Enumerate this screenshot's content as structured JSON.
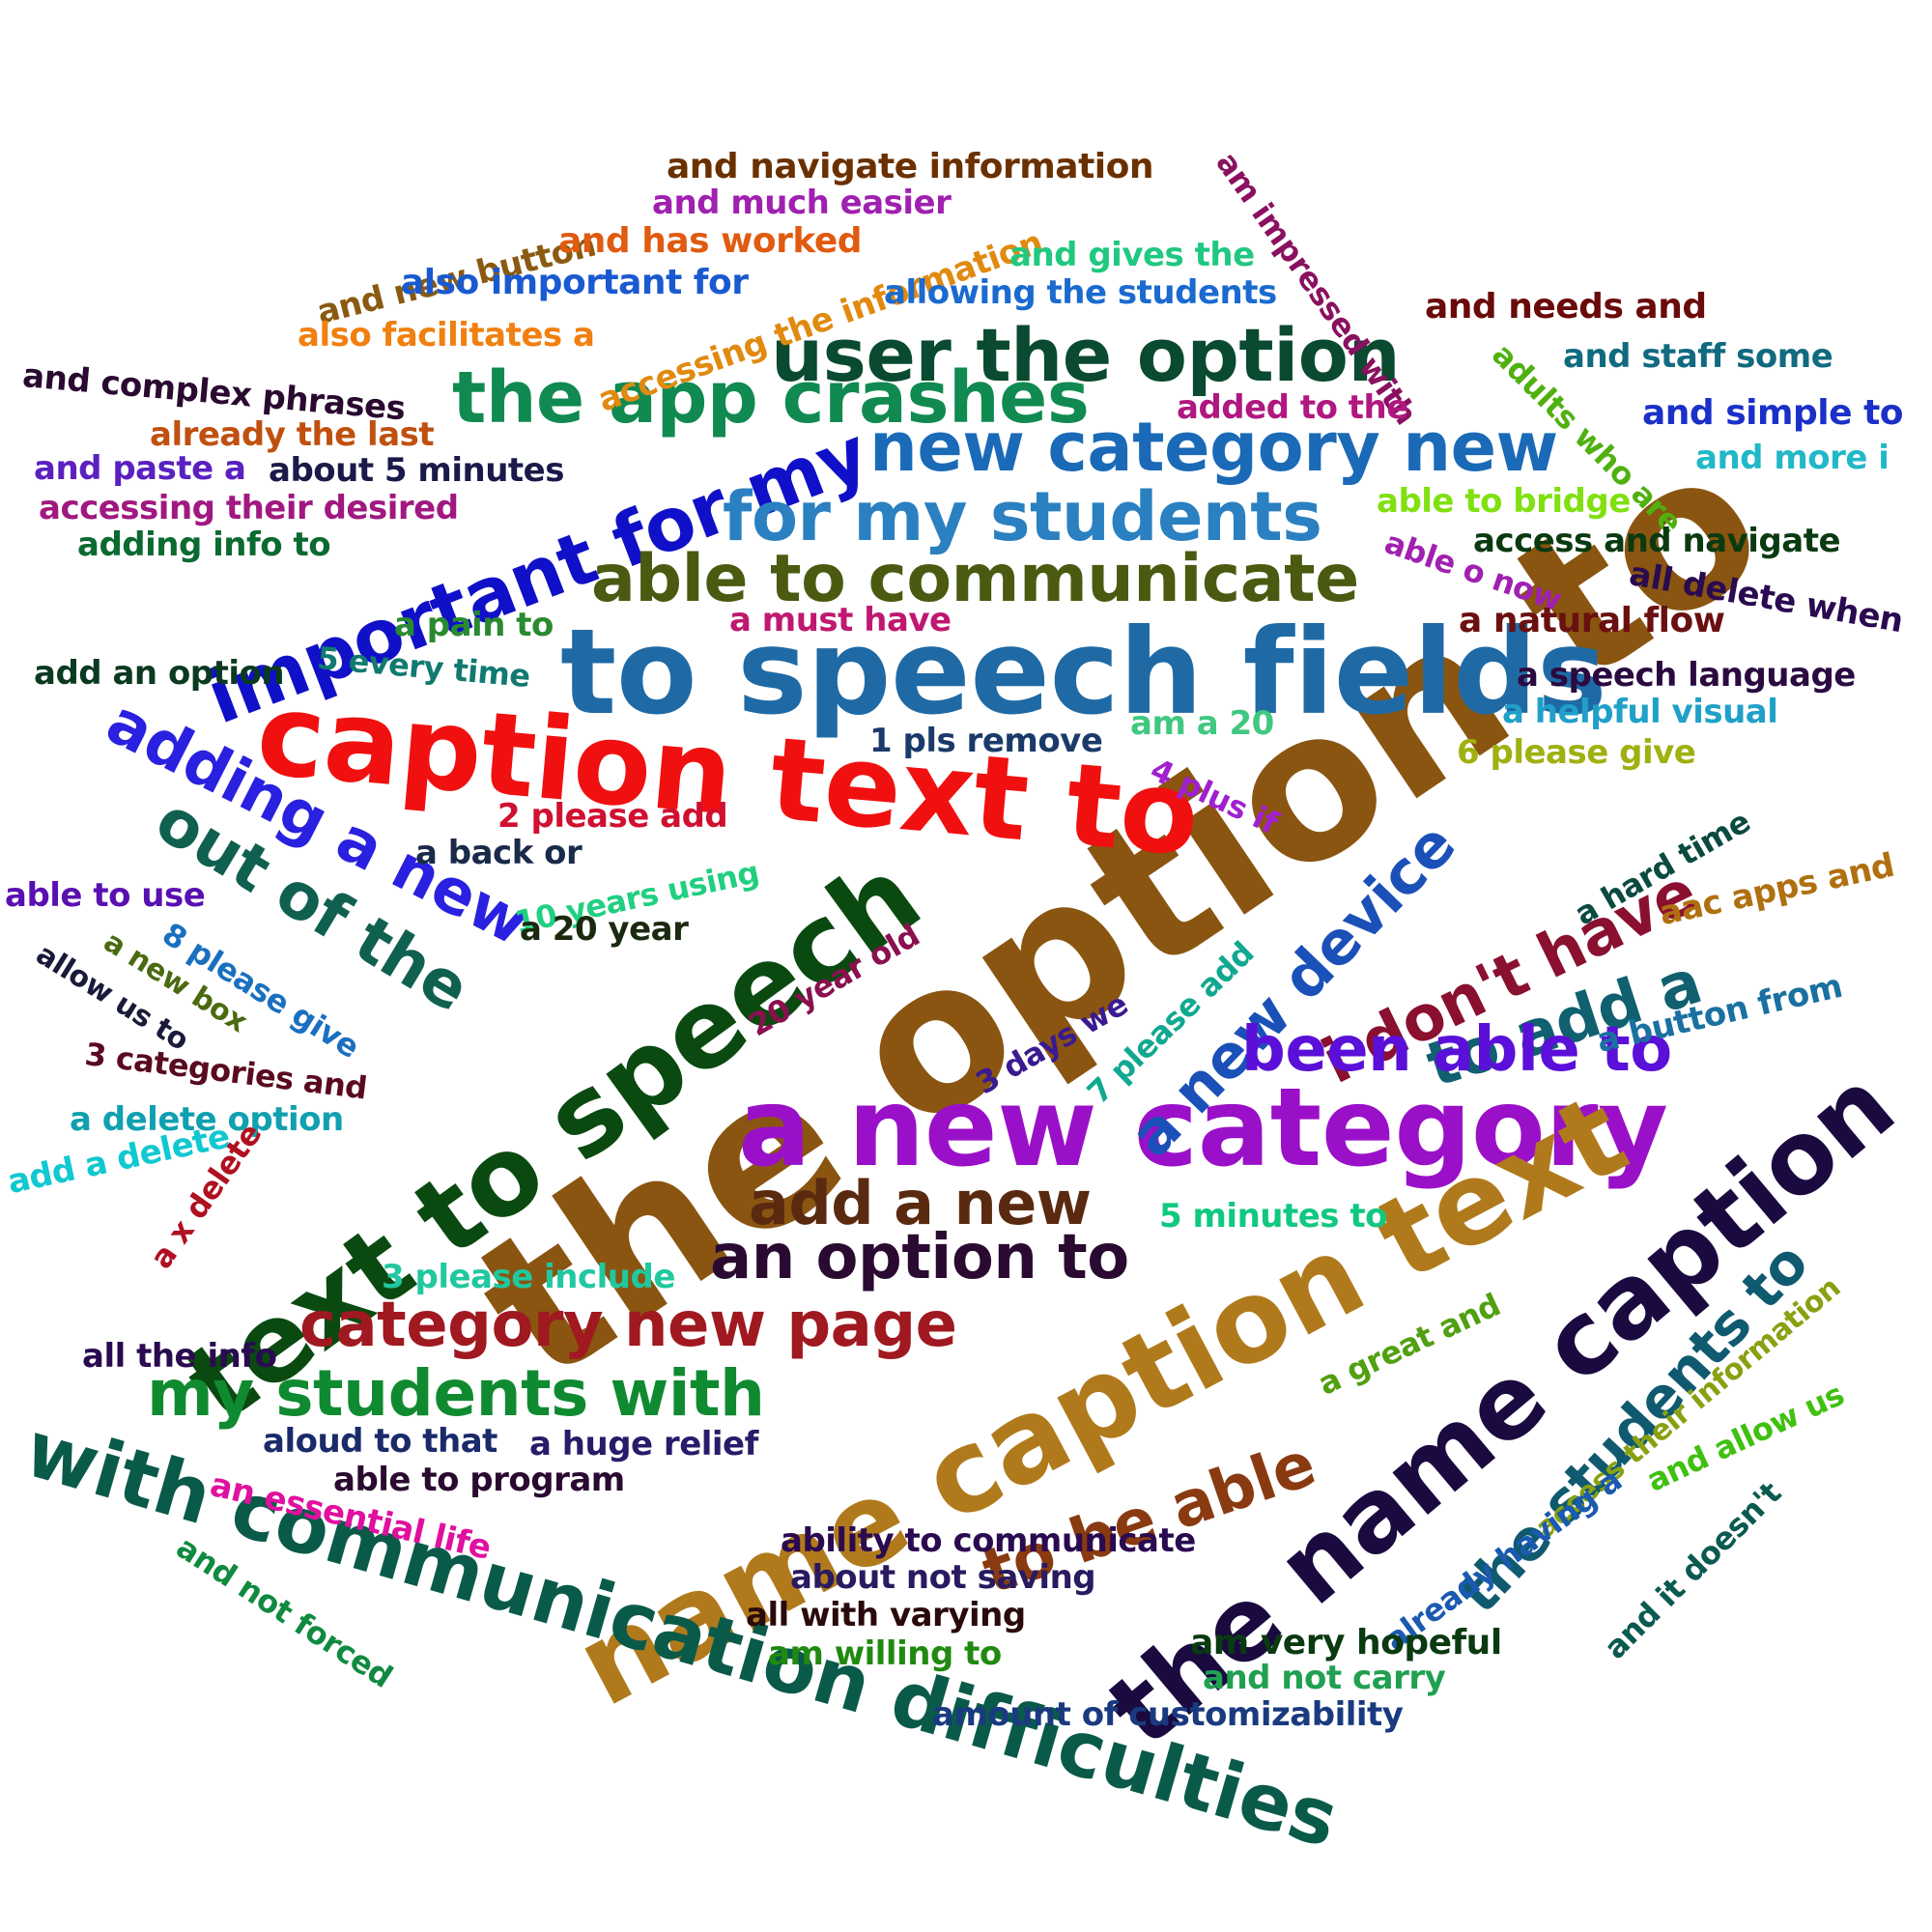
{
  "words": [
    {
      "text": "the option to",
      "color": "#8a5510"
    },
    {
      "text": "to speech fields",
      "color": "#1f6aa5"
    },
    {
      "text": "caption text to",
      "color": "#f01010"
    },
    {
      "text": "a new category",
      "color": "#9a10c8"
    },
    {
      "text": "name caption text",
      "color": "#b07a1c"
    },
    {
      "text": "text to speech",
      "color": "#0a4a10"
    },
    {
      "text": "the name caption",
      "color": "#1a0a40"
    },
    {
      "text": "with communication difficulties",
      "color": "#0a5a4a"
    },
    {
      "text": "important for my",
      "color": "#1010c8"
    },
    {
      "text": "user the option",
      "color": "#0a4a30"
    },
    {
      "text": "the app crashes",
      "color": "#108a50"
    },
    {
      "text": "new category new",
      "color": "#1a6ab8"
    },
    {
      "text": "for my students",
      "color": "#2a80c0"
    },
    {
      "text": "able to communicate",
      "color": "#4a5a10"
    },
    {
      "text": "adding a new",
      "color": "#2a20e0"
    },
    {
      "text": "out of the",
      "color": "#106050"
    },
    {
      "text": "i don't have",
      "color": "#8a1030"
    },
    {
      "text": "a new device",
      "color": "#1a50b8"
    },
    {
      "text": "to add a",
      "color": "#106070"
    },
    {
      "text": "been able to",
      "color": "#5a10d8"
    },
    {
      "text": "add a new",
      "color": "#5a2a10"
    },
    {
      "text": "an option to",
      "color": "#2a0a30"
    },
    {
      "text": "category new page",
      "color": "#a01820"
    },
    {
      "text": "my students with",
      "color": "#108a30"
    },
    {
      "text": "to be able",
      "color": "#8a3a10"
    },
    {
      "text": "the students to",
      "color": "#105a70"
    },
    {
      "text": "and navigate information",
      "color": "#6a3000"
    },
    {
      "text": "and much easier",
      "color": "#a020b0"
    },
    {
      "text": "and new button",
      "color": "#8a5a10"
    },
    {
      "text": "and has worked",
      "color": "#e05a10"
    },
    {
      "text": "accessing the information",
      "color": "#e08a10"
    },
    {
      "text": "and gives the",
      "color": "#20c880"
    },
    {
      "text": "also important for",
      "color": "#1a5ad0"
    },
    {
      "text": "allowing the students",
      "color": "#1a6ad0"
    },
    {
      "text": "am impressed with",
      "color": "#8a1060"
    },
    {
      "text": "also facilitates a",
      "color": "#f08010"
    },
    {
      "text": "and needs and",
      "color": "#6a0a0a"
    },
    {
      "text": "adults who are",
      "color": "#50b010"
    },
    {
      "text": "and staff some",
      "color": "#106a80"
    },
    {
      "text": "and complex phrases",
      "color": "#2a0a30"
    },
    {
      "text": "added to the",
      "color": "#b01880"
    },
    {
      "text": "and simple to",
      "color": "#1a30c8"
    },
    {
      "text": "already the last",
      "color": "#c05010"
    },
    {
      "text": "and paste a",
      "color": "#5a20c0"
    },
    {
      "text": "about 5 minutes",
      "color": "#1a1a4a"
    },
    {
      "text": "and more i",
      "color": "#20b8c8"
    },
    {
      "text": "accessing their desired",
      "color": "#a01880"
    },
    {
      "text": "able to bridge",
      "color": "#80e010"
    },
    {
      "text": "adding info to",
      "color": "#0a6a30"
    },
    {
      "text": "access and navigate",
      "color": "#0a3a10"
    },
    {
      "text": "able o now",
      "color": "#a020b0"
    },
    {
      "text": "all delete when",
      "color": "#2a0a50"
    },
    {
      "text": "a must have",
      "color": "#c01870"
    },
    {
      "text": "a natural flow",
      "color": "#6a1010"
    },
    {
      "text": "a pain to",
      "color": "#2a8a30"
    },
    {
      "text": "5 every time",
      "color": "#107a70"
    },
    {
      "text": "add an option",
      "color": "#0a3a20"
    },
    {
      "text": "a speech language",
      "color": "#2a0a40"
    },
    {
      "text": "a helpful visual",
      "color": "#20a0c8"
    },
    {
      "text": "am a 20",
      "color": "#40c880"
    },
    {
      "text": "1 pls remove",
      "color": "#1a3a6a"
    },
    {
      "text": "6 please give",
      "color": "#a0b010"
    },
    {
      "text": "4 plus if",
      "color": "#a020d0"
    },
    {
      "text": "2 please add",
      "color": "#d01030"
    },
    {
      "text": "a back or",
      "color": "#1a2a4a"
    },
    {
      "text": "10 years using",
      "color": "#20d080"
    },
    {
      "text": "a hard time",
      "color": "#0a4a40"
    },
    {
      "text": "aac apps and",
      "color": "#b07010"
    },
    {
      "text": "able to use",
      "color": "#5a10b0"
    },
    {
      "text": "a 20 year",
      "color": "#1a2a10"
    },
    {
      "text": "20 year old",
      "color": "#8a1050"
    },
    {
      "text": "8 please give",
      "color": "#1a70c0"
    },
    {
      "text": "a new box",
      "color": "#4a6a10"
    },
    {
      "text": "allow us to",
      "color": "#1a1a3a"
    },
    {
      "text": "7 please add",
      "color": "#10a890"
    },
    {
      "text": "3 days we",
      "color": "#3a1a90"
    },
    {
      "text": "a button from",
      "color": "#1a70a0"
    },
    {
      "text": "3 categories and",
      "color": "#5a0a20"
    },
    {
      "text": "a delete option",
      "color": "#10a0b0"
    },
    {
      "text": "add a delete",
      "color": "#10c8d0"
    },
    {
      "text": "a x delete",
      "color": "#b01020"
    },
    {
      "text": "5 minutes to",
      "color": "#10c880"
    },
    {
      "text": "3 please include",
      "color": "#20c8a0"
    },
    {
      "text": "all the info",
      "color": "#2a0a50"
    },
    {
      "text": "a great and",
      "color": "#50a010"
    },
    {
      "text": "access their information",
      "color": "#8aa010"
    },
    {
      "text": "and allow us",
      "color": "#40c010"
    },
    {
      "text": "aloud to that",
      "color": "#1a2a6a"
    },
    {
      "text": "a huge relief",
      "color": "#2a1a6a"
    },
    {
      "text": "able to program",
      "color": "#2a0a30"
    },
    {
      "text": "an essential life",
      "color": "#e010a0"
    },
    {
      "text": "and not forced",
      "color": "#108a40"
    },
    {
      "text": "ability to communicate",
      "color": "#2a0a50"
    },
    {
      "text": "about not saving",
      "color": "#2a1a60"
    },
    {
      "text": "already having a",
      "color": "#1a5ab0"
    },
    {
      "text": "and it doesn't",
      "color": "#0a5a50"
    },
    {
      "text": "all with varying",
      "color": "#2a0a0a"
    },
    {
      "text": "am willing to",
      "color": "#208a10"
    },
    {
      "text": "am very hopeful",
      "color": "#0a3a10"
    },
    {
      "text": "and not carry",
      "color": "#20a050"
    },
    {
      "text": "amount of customizability",
      "color": "#1a3a80"
    }
  ]
}
